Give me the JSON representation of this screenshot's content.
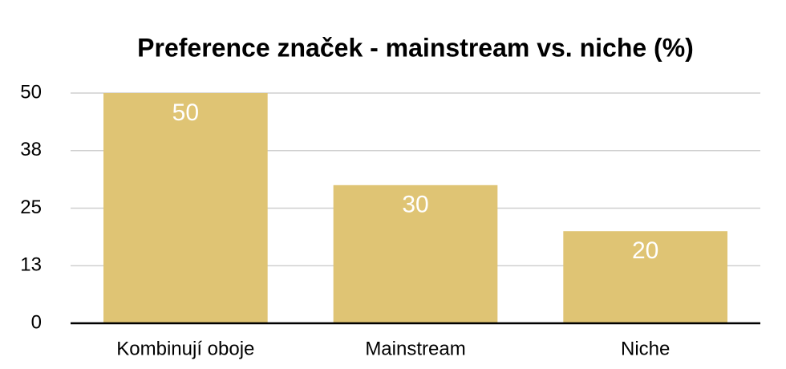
{
  "chart_data": {
    "type": "bar",
    "title": "Preference značek - mainstream vs. niche (%)",
    "categories": [
      "Kombinují oboje",
      "Mainstream",
      "Niche"
    ],
    "values": [
      50,
      30,
      20
    ],
    "color": "#dfc474",
    "ylim": [
      0,
      50
    ],
    "yticks": [
      0,
      {
        "value": 12.5,
        "label": "13"
      },
      25,
      {
        "value": 37.5,
        "label": "38"
      },
      50
    ],
    "grid": true
  }
}
